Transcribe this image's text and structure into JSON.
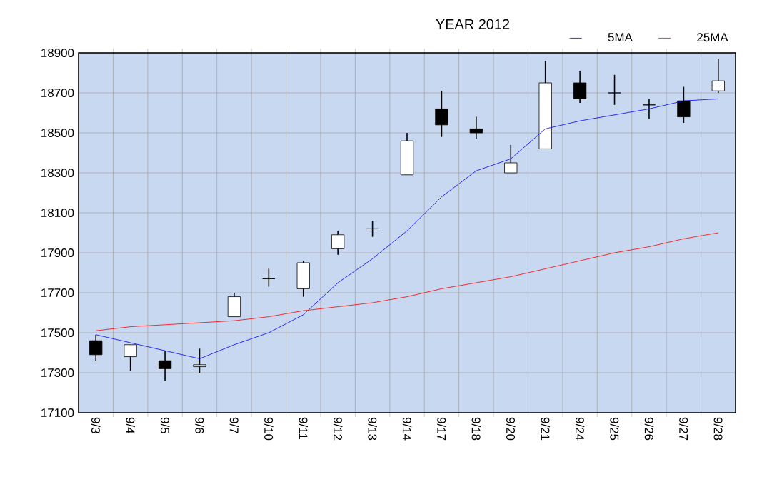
{
  "chart_data": {
    "type": "candlestick",
    "title": "YEAR 2012",
    "categories": [
      "9/3",
      "9/4",
      "9/5",
      "9/6",
      "9/7",
      "9/10",
      "9/11",
      "9/12",
      "9/13",
      "9/14",
      "9/17",
      "9/18",
      "9/20",
      "9/21",
      "9/24",
      "9/25",
      "9/26",
      "9/27",
      "9/28"
    ],
    "ohlc": [
      [
        17460,
        17490,
        17360,
        17390
      ],
      [
        17380,
        17440,
        17310,
        17440
      ],
      [
        17360,
        17410,
        17260,
        17320
      ],
      [
        17330,
        17420,
        17300,
        17340
      ],
      [
        17580,
        17700,
        17580,
        17680
      ],
      [
        17770,
        17820,
        17730,
        17770
      ],
      [
        17720,
        17860,
        17680,
        17850
      ],
      [
        17920,
        18010,
        17890,
        17990
      ],
      [
        18020,
        18060,
        17980,
        18020
      ],
      [
        18290,
        18500,
        18290,
        18460
      ],
      [
        18620,
        18710,
        18480,
        18540
      ],
      [
        18520,
        18580,
        18470,
        18500
      ],
      [
        18300,
        18440,
        18300,
        18350
      ],
      [
        18420,
        18860,
        18420,
        18750
      ],
      [
        18750,
        18810,
        18650,
        18670
      ],
      [
        18700,
        18790,
        18640,
        18700
      ],
      [
        18640,
        18670,
        18570,
        18640
      ],
      [
        18660,
        18730,
        18550,
        18580
      ],
      [
        18710,
        18870,
        18700,
        18760
      ]
    ],
    "series": [
      {
        "name": "5MA",
        "color": "#0000ff",
        "type": "line",
        "values": [
          17490,
          17450,
          17410,
          17370,
          17440,
          17500,
          17590,
          17750,
          17870,
          18010,
          18180,
          18310,
          18370,
          18520,
          18560,
          18590,
          18620,
          18660,
          18670
        ]
      },
      {
        "name": "25MA",
        "color": "#ff0000",
        "type": "line",
        "values": [
          17510,
          17530,
          17540,
          17550,
          17560,
          17580,
          17610,
          17630,
          17650,
          17680,
          17720,
          17750,
          17780,
          17820,
          17860,
          17900,
          17930,
          17970,
          18000
        ]
      }
    ],
    "ylim": [
      17100,
      18900
    ],
    "yticks": [
      17100,
      17300,
      17500,
      17700,
      17900,
      18100,
      18300,
      18500,
      18700,
      18900
    ],
    "grid": true,
    "legend": "top right"
  }
}
